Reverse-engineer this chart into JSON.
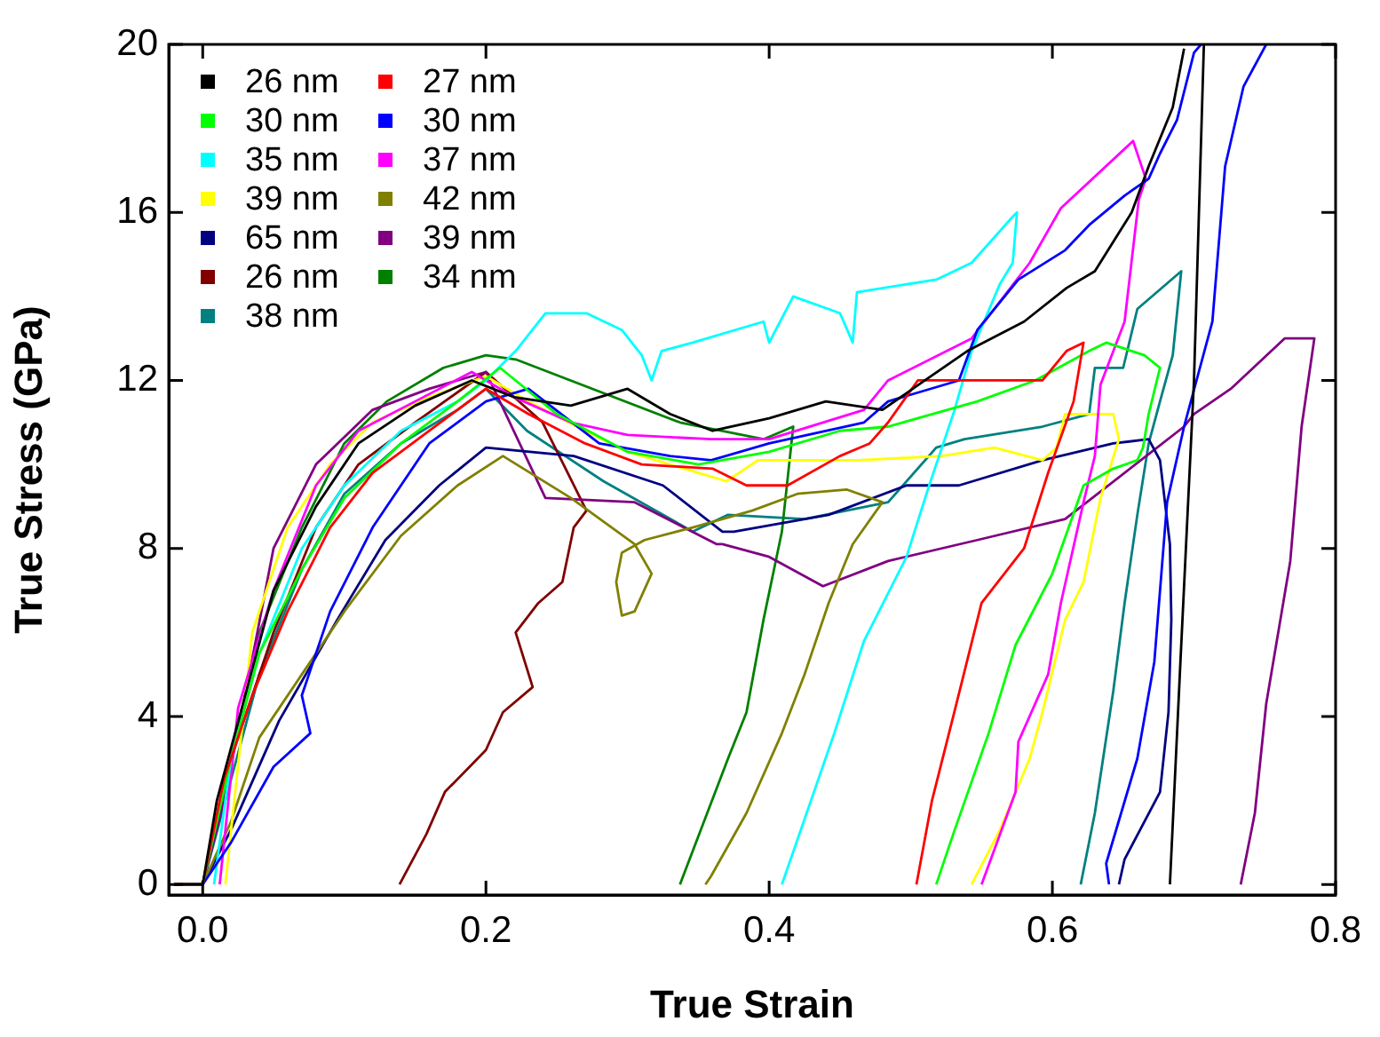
{
  "chart_data": {
    "type": "line",
    "xlabel": "True Strain",
    "ylabel": "True Stress (GPa)",
    "xlim": [
      -0.024,
      0.8
    ],
    "ylim": [
      -0.25,
      20
    ],
    "xticks": [
      {
        "value": 0,
        "label": "0.0"
      },
      0.2,
      0.4,
      0.6,
      0.8
    ],
    "yticks": [
      0,
      4,
      8,
      12,
      16,
      20
    ],
    "legend": "top left",
    "grid": false,
    "marker": "none",
    "line_style": "solid",
    "series": [
      {
        "name": "26 nm",
        "color": "#000000",
        "x": [
          -0.02,
          0,
          0.01,
          0.03,
          0.05,
          0.08,
          0.11,
          0.15,
          0.19,
          0.22,
          0.26,
          0.3,
          0.33,
          0.36,
          0.4,
          0.44,
          0.48,
          0.51,
          0.54,
          0.58,
          0.61,
          0.63,
          0.656,
          0.668,
          0.685,
          0.693,
          0.7,
          0.707,
          0.7,
          0.69,
          0.683
        ],
        "values": [
          0,
          0,
          2,
          4.5,
          7,
          9,
          10.5,
          11.4,
          12,
          11.6,
          11.4,
          11.8,
          11.2,
          10.8,
          11.1,
          11.5,
          11.3,
          12,
          12.7,
          13.4,
          14.2,
          14.6,
          16,
          17.1,
          18.5,
          19.9,
          null,
          20,
          12,
          5,
          0
        ]
      },
      {
        "name": "27 nm",
        "color": "#ff0000",
        "x": [
          -0.02,
          0,
          0.015,
          0.035,
          0.06,
          0.09,
          0.12,
          0.16,
          0.2,
          0.23,
          0.27,
          0.31,
          0.36,
          0.384,
          0.413,
          0.45,
          0.471,
          0.484,
          0.505,
          0.55,
          0.593,
          0.61,
          0.622,
          0.615,
          0.597,
          0.58,
          0.55,
          0.53,
          0.515,
          0.504
        ],
        "values": [
          0,
          0,
          2.5,
          4.5,
          6.5,
          8.5,
          9.8,
          10.8,
          11.8,
          11.2,
          10.5,
          10,
          9.9,
          9.5,
          9.5,
          10.2,
          10.5,
          11,
          12,
          12,
          12,
          12.7,
          12.9,
          11.5,
          9.8,
          8,
          6.7,
          4,
          2,
          0
        ]
      },
      {
        "name": "30 nm",
        "color": "#00ff00",
        "x": [
          -0.02,
          0,
          0.02,
          0.04,
          0.07,
          0.1,
          0.14,
          0.18,
          0.21,
          0.25,
          0.3,
          0.35,
          0.4,
          0.45,
          0.484,
          0.547,
          0.588,
          0.626,
          0.638,
          0.665,
          0.676,
          0.668,
          0.664,
          0.66,
          0.643,
          0.622,
          0.6,
          0.574,
          0.555,
          0.53,
          0.518
        ],
        "values": [
          0,
          0,
          3,
          5.5,
          7.5,
          9.2,
          10.5,
          11.5,
          12.3,
          11.2,
          10.3,
          10,
          10.3,
          10.8,
          10.9,
          11.5,
          12,
          12.7,
          12.9,
          12.6,
          12.3,
          11.2,
          10.4,
          10.1,
          9.9,
          9.5,
          7.4,
          5.7,
          3.6,
          1.2,
          0
        ]
      },
      {
        "name": "30 nm",
        "color": "#0000ff",
        "x": [
          -0.02,
          0,
          0.02,
          0.05,
          0.076,
          0.07,
          0.09,
          0.12,
          0.16,
          0.2,
          0.23,
          0.28,
          0.33,
          0.359,
          0.4,
          0.467,
          0.484,
          0.534,
          0.547,
          0.576,
          0.609,
          0.626,
          0.651,
          0.668,
          0.676,
          0.688,
          0.7,
          0.705,
          0.73,
          0.751,
          0.735,
          0.722,
          0.713,
          0.693,
          0.681,
          0.672,
          0.66,
          0.638,
          0.64
        ],
        "values": [
          0,
          0,
          1,
          2.8,
          3.6,
          4.5,
          6.5,
          8.5,
          10.5,
          11.5,
          11.8,
          10.5,
          10.2,
          10.1,
          10.5,
          11,
          11.5,
          12,
          13.2,
          14.4,
          15.1,
          15.7,
          16.4,
          16.8,
          17.4,
          18.2,
          19.8,
          20,
          null,
          20,
          19,
          17.1,
          13.4,
          10.9,
          9.1,
          5.3,
          3,
          0.5,
          0
        ]
      },
      {
        "name": "35 nm",
        "color": "#00ffff",
        "x": [
          0.008,
          0.02,
          0.04,
          0.07,
          0.1,
          0.14,
          0.18,
          0.2,
          0.221,
          0.242,
          0.271,
          0.296,
          0.31,
          0.317,
          0.324,
          0.346,
          0.396,
          0.4,
          0.417,
          0.45,
          0.459,
          0.462,
          0.518,
          0.543,
          0.572,
          0.575,
          0.572,
          0.563,
          0.543,
          0.53,
          0.513,
          0.497,
          0.467,
          0.446,
          0.409
        ],
        "values": [
          0,
          3,
          5.5,
          8,
          9.5,
          10.8,
          11.5,
          12,
          12.7,
          13.6,
          13.6,
          13.2,
          12.6,
          12,
          12.7,
          12.9,
          13.4,
          12.9,
          14,
          13.6,
          12.9,
          14.1,
          14.4,
          14.8,
          15.9,
          16,
          14.8,
          14.3,
          12.7,
          11.2,
          9.5,
          7.8,
          5.8,
          3.6,
          0
        ]
      },
      {
        "name": "37 nm",
        "color": "#ff00ff",
        "x": [
          0.012,
          0.025,
          0.05,
          0.08,
          0.11,
          0.15,
          0.19,
          0.22,
          0.26,
          0.3,
          0.359,
          0.4,
          0.467,
          0.484,
          0.543,
          0.584,
          0.606,
          0.657,
          0.666,
          0.661,
          0.651,
          0.634,
          0.63,
          0.622,
          0.606,
          0.597,
          0.576,
          0.574,
          0.55
        ],
        "values": [
          0,
          4.2,
          7,
          9.5,
          10.8,
          11.5,
          12.2,
          11.6,
          11,
          10.7,
          10.6,
          10.6,
          11.3,
          12,
          13,
          14.8,
          16.1,
          17.7,
          16.8,
          16.3,
          13.4,
          11.9,
          10.2,
          9.1,
          6.7,
          5,
          3.4,
          2.2,
          0
        ]
      },
      {
        "name": "39 nm",
        "color": "#ffff00",
        "x": [
          0.016,
          0.035,
          0.06,
          0.09,
          0.12,
          0.16,
          0.2,
          0.23,
          0.27,
          0.3,
          0.35,
          0.37,
          0.392,
          0.463,
          0.522,
          0.559,
          0.593,
          0.603,
          0.609,
          0.643,
          0.647,
          0.634,
          0.622,
          0.609,
          0.593,
          0.584,
          0.563,
          0.543
        ],
        "values": [
          0,
          6,
          8.5,
          10,
          11,
          11.6,
          12.1,
          11.5,
          10.8,
          10.3,
          9.8,
          9.6,
          10.1,
          10.1,
          10.2,
          10.4,
          10.1,
          10.4,
          11.2,
          11.2,
          10.6,
          9.2,
          7.2,
          6.3,
          4.1,
          3,
          1.3,
          0
        ]
      },
      {
        "name": "42 nm",
        "color": "#808000",
        "x": [
          -0.02,
          0,
          0.02,
          0.04,
          0.07,
          0.1,
          0.14,
          0.18,
          0.212,
          0.26,
          0.305,
          0.317,
          0.305,
          0.296,
          0.292,
          0.296,
          0.312,
          0.346,
          0.388,
          0.42,
          0.455,
          0.48,
          0.459,
          0.442,
          0.425,
          0.409,
          0.384,
          0.359,
          0.355
        ],
        "values": [
          0,
          0,
          1.5,
          3.5,
          5,
          6.5,
          8.3,
          9.5,
          10.2,
          9.2,
          8.1,
          7.4,
          6.5,
          6.4,
          7.2,
          7.9,
          8.2,
          8.5,
          8.9,
          9.3,
          9.4,
          9.1,
          8.1,
          6.7,
          5,
          3.6,
          1.7,
          0.2,
          0
        ]
      },
      {
        "name": "65 nm",
        "color": "#000080",
        "x": [
          -0.02,
          0,
          0.02,
          0.054,
          0.095,
          0.129,
          0.167,
          0.2,
          0.262,
          0.325,
          0.367,
          0.375,
          0.442,
          0.497,
          0.534,
          0.593,
          0.643,
          0.668,
          0.676,
          0.683,
          0.684,
          0.682,
          0.676,
          0.651,
          0.647
        ],
        "values": [
          0,
          0,
          1.3,
          3.9,
          6.3,
          8.2,
          9.5,
          10.4,
          10.2,
          9.5,
          8.4,
          8.4,
          8.8,
          9.5,
          9.5,
          10.1,
          10.5,
          10.6,
          10.1,
          8.1,
          6.3,
          4.1,
          2.2,
          0.6,
          0
        ]
      },
      {
        "name": "39 nm",
        "color": "#800080",
        "x": [
          -0.02,
          0,
          0.015,
          0.03,
          0.05,
          0.08,
          0.12,
          0.16,
          0.2,
          0.242,
          0.305,
          0.363,
          0.367,
          0.4,
          0.438,
          0.484,
          0.547,
          0.609,
          0.693,
          0.7,
          0.726,
          0.764,
          0.785,
          0.776,
          0.768,
          0.751,
          0.743,
          0.733
        ],
        "values": [
          0,
          0,
          2,
          4.5,
          8,
          10,
          11.3,
          11.8,
          12.2,
          9.2,
          9.1,
          8.1,
          8.1,
          7.8,
          7.1,
          7.7,
          8.2,
          8.7,
          10.9,
          11.2,
          11.8,
          13,
          13,
          10.9,
          7.7,
          4.3,
          1.7,
          0
        ]
      },
      {
        "name": "26 nm",
        "color": "#800000",
        "x": [
          -0.02,
          0,
          0.02,
          0.05,
          0.08,
          0.11,
          0.15,
          0.2,
          0.24,
          0.271,
          0.262,
          0.254,
          0.237,
          0.221,
          0.233,
          0.212,
          0.2,
          0.171,
          0.158,
          0.139
        ],
        "values": [
          0,
          0,
          3,
          6,
          8.5,
          10,
          11,
          12.2,
          11,
          8.9,
          8.5,
          7.2,
          6.7,
          6,
          4.7,
          4.1,
          3.2,
          2.2,
          1.2,
          0
        ]
      },
      {
        "name": "34 nm",
        "color": "#008000",
        "x": [
          -0.02,
          0,
          0.02,
          0.04,
          0.07,
          0.1,
          0.13,
          0.17,
          0.2,
          0.221,
          0.337,
          0.396,
          0.417,
          0.409,
          0.396,
          0.384,
          0.371,
          0.337
        ],
        "values": [
          0,
          0,
          3,
          6,
          8.5,
          10.5,
          11.5,
          12.3,
          12.6,
          12.5,
          11,
          10.6,
          10.9,
          8.4,
          6.3,
          4.1,
          3,
          0
        ]
      },
      {
        "name": "38 nm",
        "color": "#008080",
        "x": [
          -0.02,
          0,
          0.02,
          0.04,
          0.07,
          0.1,
          0.14,
          0.18,
          0.2,
          0.229,
          0.283,
          0.346,
          0.371,
          0.425,
          0.484,
          0.518,
          0.538,
          0.593,
          0.626,
          0.63,
          0.65,
          0.66,
          0.691,
          0.685,
          0.676,
          0.668,
          0.66,
          0.651,
          0.643,
          0.63,
          0.62
        ],
        "values": [
          0,
          0,
          2.5,
          5,
          7.5,
          9.3,
          10.5,
          11.3,
          11.8,
          10.8,
          9.6,
          8.4,
          8.8,
          8.7,
          9.1,
          10.4,
          10.6,
          10.9,
          11.2,
          12.3,
          12.3,
          13.7,
          14.6,
          12.6,
          11.5,
          10.5,
          8.8,
          6.7,
          4.6,
          1.7,
          0
        ]
      }
    ]
  }
}
